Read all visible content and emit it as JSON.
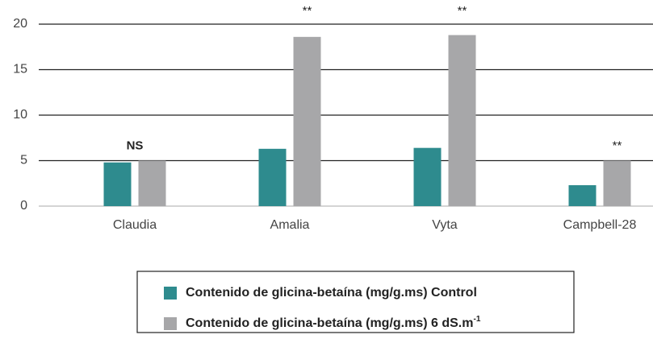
{
  "chart_data": {
    "type": "bar",
    "categories": [
      "Claudia",
      "Amalia",
      "Vyta",
      "Campbell-28"
    ],
    "series": [
      {
        "name": "Contenido de glicina-betaína (mg/g.ms) Control",
        "color": "#2e8b8e",
        "values": [
          4.8,
          6.3,
          6.4,
          2.3
        ]
      },
      {
        "name": "Contenido de glicina-betaína (mg/g.ms) 6 dS.m",
        "name_superscript": "-1",
        "color": "#a7a7a9",
        "values": [
          5.0,
          18.6,
          18.8,
          5.0
        ]
      }
    ],
    "annotations": [
      "NS",
      "**",
      "**",
      "**"
    ],
    "ylim": [
      0,
      20
    ],
    "yticks": [
      0,
      5,
      10,
      15,
      20
    ],
    "grid": true
  }
}
